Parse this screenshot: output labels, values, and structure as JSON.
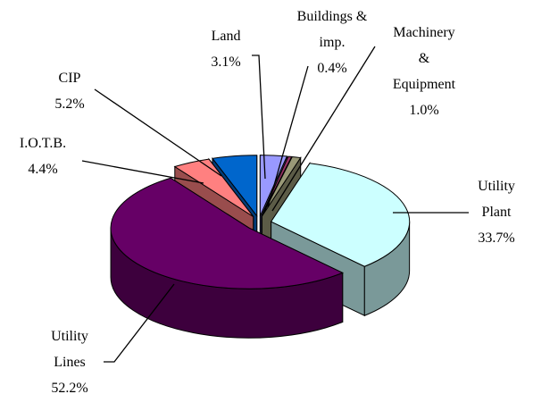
{
  "chart_data": {
    "type": "pie3d",
    "categories": [
      "Land",
      "Buildings & imp.",
      "Machinery & Equipment",
      "Utility Plant",
      "Utility Lines",
      "I.O.T.B.",
      "CIP"
    ],
    "values": [
      3.1,
      0.4,
      1.0,
      33.7,
      52.2,
      4.4,
      5.2
    ],
    "value_labels": [
      "3.1%",
      "0.4%",
      "1.0%",
      "33.7%",
      "52.2%",
      "4.4%",
      "5.2%"
    ],
    "colors": [
      "#9999ff",
      "#993366",
      "#999977",
      "#ccffff",
      "#660066",
      "#ff8080",
      "#0066cc"
    ]
  }
}
